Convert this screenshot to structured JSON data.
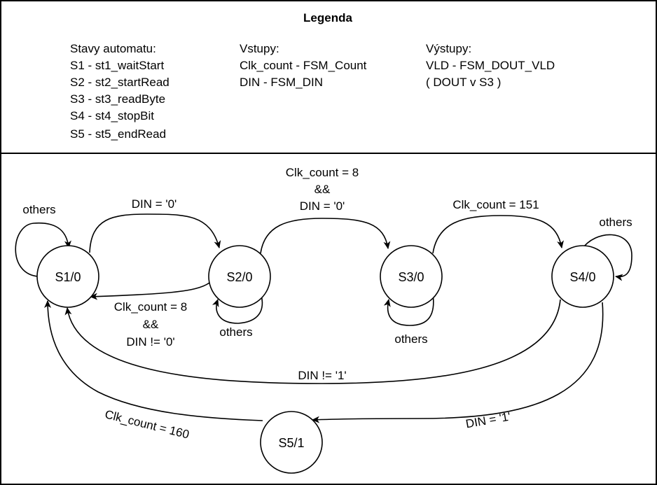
{
  "legend": {
    "title": "Legenda",
    "states_heading": "Stavy automatu:",
    "states": [
      "S1 - st1_waitStart",
      "S2 - st2_startRead",
      "S3 - st3_readByte",
      "S4 - st4_stopBit",
      "S5 - st5_endRead"
    ],
    "inputs_heading": "Vstupy:",
    "inputs": [
      "Clk_count - FSM_Count",
      "DIN - FSM_DIN"
    ],
    "outputs_heading": "Výstupy:",
    "outputs": [
      "VLD - FSM_DOUT_VLD",
      "( DOUT v S3 )"
    ]
  },
  "states": {
    "s1": "S1/0",
    "s2": "S2/0",
    "s3": "S3/0",
    "s4": "S4/0",
    "s5": "S5/1"
  },
  "transitions": {
    "s1_self": "others",
    "s1_to_s2": "DIN = '0'",
    "s2_self": "others",
    "s2_to_s1": [
      "Clk_count = 8",
      "&&",
      "DIN != '0'"
    ],
    "s2_to_s3": [
      "Clk_count = 8",
      "&&",
      "DIN = '0'"
    ],
    "s3_self": "others",
    "s3_to_s4": "Clk_count = 151",
    "s4_self": "others",
    "s4_to_s1": "DIN != '1'",
    "s4_to_s5": "DIN = '1'",
    "s5_to_s1": "Clk_count = 160"
  }
}
